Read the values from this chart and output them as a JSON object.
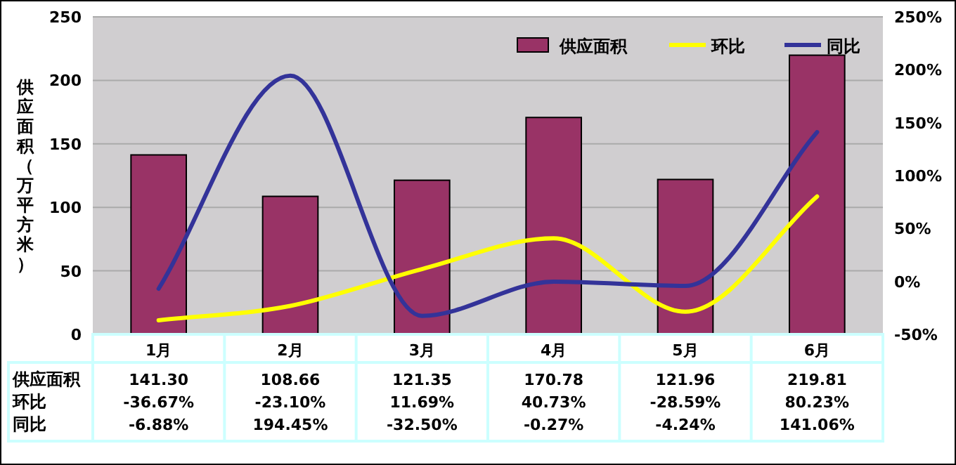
{
  "chart_data": {
    "type": "bar",
    "ylabel": "供应面积（万平方米）",
    "categories": [
      "1月",
      "2月",
      "3月",
      "4月",
      "5月",
      "6月"
    ],
    "ylim": [
      0,
      250
    ],
    "yticks": [
      0,
      50,
      100,
      150,
      200,
      250
    ],
    "y2lim": [
      -50,
      250
    ],
    "y2ticks": [
      {
        "value": -50,
        "label": "-50%"
      },
      {
        "value": 0,
        "label": "0%"
      },
      {
        "value": 50,
        "label": "50%"
      },
      {
        "value": 100,
        "label": "100%"
      },
      {
        "value": 150,
        "label": "150%"
      },
      {
        "value": 200,
        "label": "200%"
      },
      {
        "value": 250,
        "label": "250%"
      }
    ],
    "grid": "y",
    "legend": "top right",
    "series": [
      {
        "name": "供应面积",
        "color": "#993366",
        "values": [
          141.3,
          108.66,
          121.35,
          170.78,
          121.96,
          219.81
        ],
        "value_labels": [
          "141.30",
          "108.66",
          "121.35",
          "170.78",
          "121.96",
          "219.81"
        ]
      },
      {
        "name": "环比",
        "type": "line",
        "axis": "y2",
        "color": "#ffff00",
        "values": [
          -36.67,
          -23.1,
          11.69,
          40.73,
          -28.59,
          80.23
        ],
        "value_labels": [
          "-36.67%",
          "-23.10%",
          "11.69%",
          "40.73%",
          "-28.59%",
          "80.23%"
        ]
      },
      {
        "name": "同比",
        "type": "line",
        "axis": "y2",
        "color": "#333399",
        "values": [
          -6.88,
          194.45,
          -32.5,
          -0.27,
          -4.24,
          141.06
        ],
        "value_labels": [
          "-6.88%",
          "194.45%",
          "-32.50%",
          "-0.27%",
          "-4.24%",
          "141.06%"
        ]
      }
    ]
  }
}
